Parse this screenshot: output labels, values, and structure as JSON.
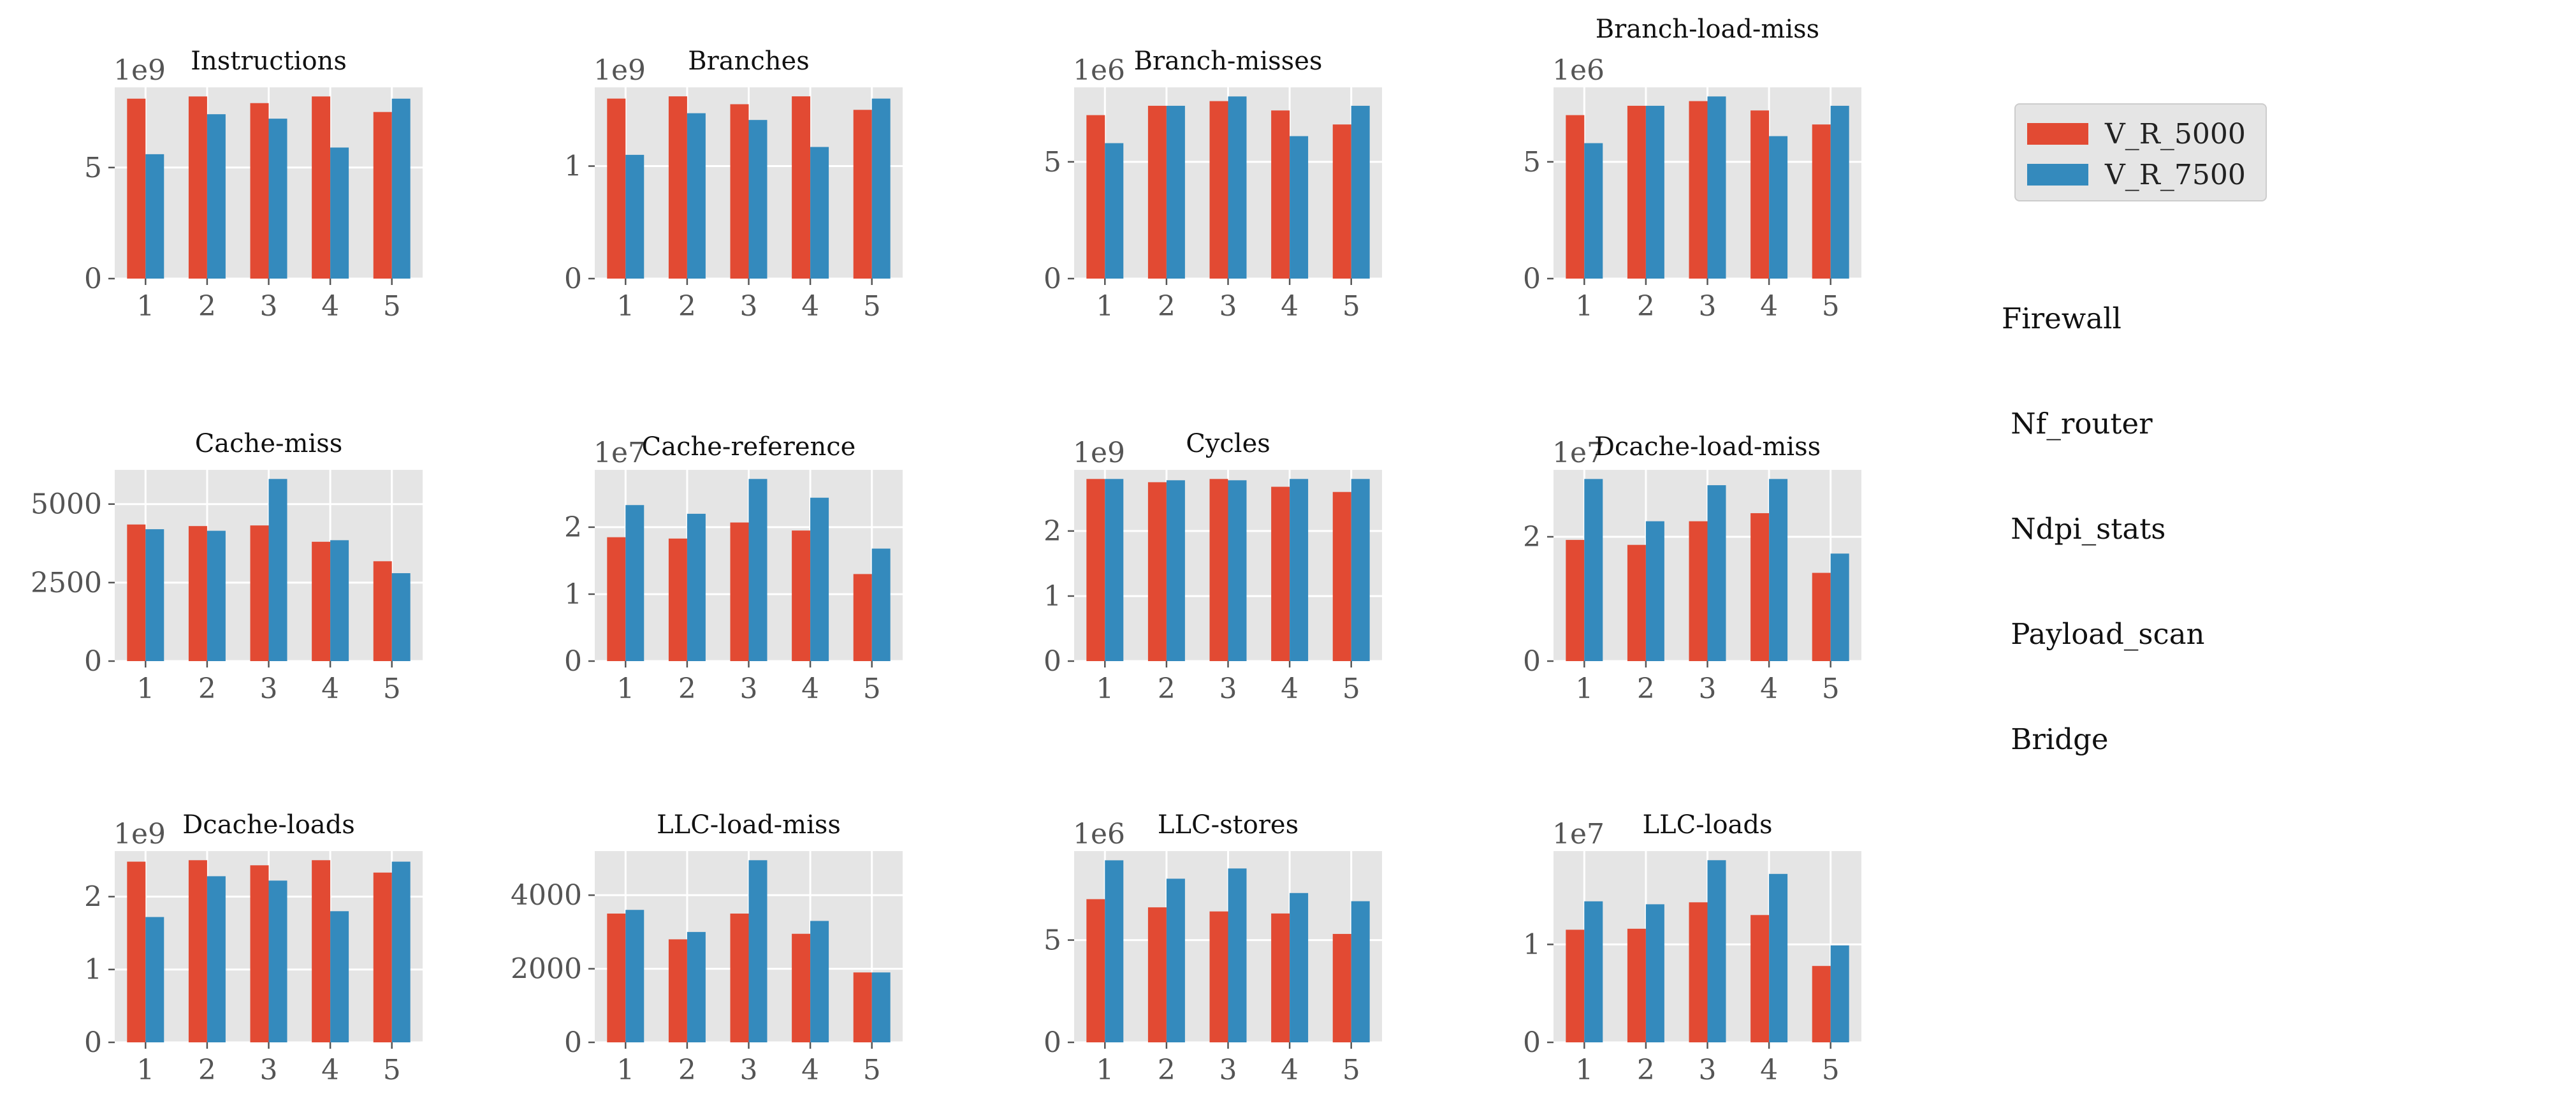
{
  "colors": {
    "V_R_5000": "#E24A33",
    "V_R_7500": "#348ABD",
    "panel_bg": "#E5E5E5",
    "grid": "#FFFFFF",
    "tick_text": "#555555"
  },
  "legend": {
    "entries": [
      "V_R_5000",
      "V_R_7500"
    ],
    "placement": "top-right"
  },
  "side_text": [
    "Firewall",
    " Nf_router",
    " Ndpi_stats",
    " Payload_scan",
    " Bridge"
  ],
  "chart_data": [
    {
      "type": "bar",
      "title": "Instructions",
      "offset_text": "1e9",
      "categories": [
        "1",
        "2",
        "3",
        "4",
        "5"
      ],
      "series": [
        {
          "name": "V_R_5000",
          "values": [
            8.1,
            8.2,
            7.9,
            8.2,
            7.5
          ]
        },
        {
          "name": "V_R_7500",
          "values": [
            5.6,
            7.4,
            7.2,
            5.9,
            8.1
          ]
        }
      ],
      "ylim": [
        0,
        8.61
      ],
      "yticks": [
        0,
        5
      ],
      "ytick_labels": [
        "0",
        "5"
      ]
    },
    {
      "type": "bar",
      "title": "Branches",
      "offset_text": "1e9",
      "categories": [
        "1",
        "2",
        "3",
        "4",
        "5"
      ],
      "series": [
        {
          "name": "V_R_5000",
          "values": [
            1.6,
            1.62,
            1.55,
            1.62,
            1.5
          ]
        },
        {
          "name": "V_R_7500",
          "values": [
            1.1,
            1.47,
            1.41,
            1.17,
            1.6
          ]
        }
      ],
      "ylim": [
        0,
        1.7
      ],
      "yticks": [
        0,
        1
      ],
      "ytick_labels": [
        "0",
        "1"
      ]
    },
    {
      "type": "bar",
      "title": "Branch-misses",
      "offset_text": "1e6",
      "categories": [
        "1",
        "2",
        "3",
        "4",
        "5"
      ],
      "series": [
        {
          "name": "V_R_5000",
          "values": [
            7.0,
            7.4,
            7.6,
            7.2,
            6.6
          ]
        },
        {
          "name": "V_R_7500",
          "values": [
            5.8,
            7.4,
            7.8,
            6.1,
            7.4
          ]
        }
      ],
      "ylim": [
        0,
        8.19
      ],
      "yticks": [
        0,
        5
      ],
      "ytick_labels": [
        "0",
        "5"
      ]
    },
    {
      "type": "bar",
      "title": "Branch-load-miss",
      "offset_text": "1e6",
      "categories": [
        "1",
        "2",
        "3",
        "4",
        "5"
      ],
      "series": [
        {
          "name": "V_R_5000",
          "values": [
            7.0,
            7.4,
            7.6,
            7.2,
            6.6
          ]
        },
        {
          "name": "V_R_7500",
          "values": [
            5.8,
            7.4,
            7.8,
            6.1,
            7.4
          ]
        }
      ],
      "ylim": [
        0,
        8.19
      ],
      "yticks": [
        0,
        5
      ],
      "ytick_labels": [
        "0",
        "5"
      ]
    },
    {
      "type": "bar",
      "title": "Cache-miss",
      "offset_text": "",
      "categories": [
        "1",
        "2",
        "3",
        "4",
        "5"
      ],
      "series": [
        {
          "name": "V_R_5000",
          "values": [
            4350,
            4300,
            4320,
            3800,
            3180
          ]
        },
        {
          "name": "V_R_7500",
          "values": [
            4200,
            4150,
            5800,
            3850,
            2800
          ]
        }
      ],
      "ylim": [
        0,
        6090
      ],
      "yticks": [
        0,
        2500,
        5000
      ],
      "ytick_labels": [
        "0",
        "2500",
        "5000"
      ]
    },
    {
      "type": "bar",
      "title": "Cache-reference",
      "offset_text": "1e7",
      "categories": [
        "1",
        "2",
        "3",
        "4",
        "5"
      ],
      "series": [
        {
          "name": "V_R_5000",
          "values": [
            1.85,
            1.83,
            2.07,
            1.95,
            1.3
          ]
        },
        {
          "name": "V_R_7500",
          "values": [
            2.33,
            2.2,
            2.72,
            2.44,
            1.68
          ]
        }
      ],
      "ylim": [
        0,
        2.856
      ],
      "yticks": [
        0,
        1,
        2
      ],
      "ytick_labels": [
        "0",
        "1",
        "2"
      ]
    },
    {
      "type": "bar",
      "title": "Cycles",
      "offset_text": "1e9",
      "categories": [
        "1",
        "2",
        "3",
        "4",
        "5"
      ],
      "series": [
        {
          "name": "V_R_5000",
          "values": [
            2.8,
            2.75,
            2.8,
            2.68,
            2.6
          ]
        },
        {
          "name": "V_R_7500",
          "values": [
            2.8,
            2.78,
            2.78,
            2.8,
            2.8
          ]
        }
      ],
      "ylim": [
        0,
        2.94
      ],
      "yticks": [
        0,
        1,
        2
      ],
      "ytick_labels": [
        "0",
        "1",
        "2"
      ]
    },
    {
      "type": "bar",
      "title": "Dcache-load-miss",
      "offset_text": "1e7",
      "categories": [
        "1",
        "2",
        "3",
        "4",
        "5"
      ],
      "series": [
        {
          "name": "V_R_5000",
          "values": [
            1.95,
            1.87,
            2.25,
            2.38,
            1.42
          ]
        },
        {
          "name": "V_R_7500",
          "values": [
            2.93,
            2.25,
            2.83,
            2.93,
            1.73
          ]
        }
      ],
      "ylim": [
        0,
        3.077
      ],
      "yticks": [
        0,
        2
      ],
      "ytick_labels": [
        "0",
        "2"
      ]
    },
    {
      "type": "bar",
      "title": "Dcache-loads",
      "offset_text": "1e9",
      "categories": [
        "1",
        "2",
        "3",
        "4",
        "5"
      ],
      "series": [
        {
          "name": "V_R_5000",
          "values": [
            2.48,
            2.5,
            2.43,
            2.5,
            2.33
          ]
        },
        {
          "name": "V_R_7500",
          "values": [
            1.72,
            2.28,
            2.22,
            1.8,
            2.48
          ]
        }
      ],
      "ylim": [
        0,
        2.625
      ],
      "yticks": [
        0,
        1,
        2
      ],
      "ytick_labels": [
        "0",
        "1",
        "2"
      ]
    },
    {
      "type": "bar",
      "title": "LLC-load-miss",
      "offset_text": "",
      "categories": [
        "1",
        "2",
        "3",
        "4",
        "5"
      ],
      "series": [
        {
          "name": "V_R_5000",
          "values": [
            3500,
            2800,
            3500,
            2950,
            1900
          ]
        },
        {
          "name": "V_R_7500",
          "values": [
            3600,
            3000,
            4950,
            3300,
            1900
          ]
        }
      ],
      "ylim": [
        0,
        5198
      ],
      "yticks": [
        0,
        2000,
        4000
      ],
      "ytick_labels": [
        "0",
        "2000",
        "4000"
      ]
    },
    {
      "type": "bar",
      "title": "LLC-stores",
      "offset_text": "1e6",
      "categories": [
        "1",
        "2",
        "3",
        "4",
        "5"
      ],
      "series": [
        {
          "name": "V_R_5000",
          "values": [
            7.0,
            6.6,
            6.4,
            6.3,
            5.3
          ]
        },
        {
          "name": "V_R_7500",
          "values": [
            8.9,
            8.0,
            8.5,
            7.3,
            6.9
          ]
        }
      ],
      "ylim": [
        0,
        9.35
      ],
      "yticks": [
        0,
        5
      ],
      "ytick_labels": [
        "0",
        "5"
      ]
    },
    {
      "type": "bar",
      "title": "LLC-loads",
      "offset_text": "1e7",
      "categories": [
        "1",
        "2",
        "3",
        "4",
        "5"
      ],
      "series": [
        {
          "name": "V_R_5000",
          "values": [
            1.15,
            1.16,
            1.43,
            1.3,
            0.78
          ]
        },
        {
          "name": "V_R_7500",
          "values": [
            1.44,
            1.41,
            1.86,
            1.72,
            0.99
          ]
        }
      ],
      "ylim": [
        0,
        1.953
      ],
      "yticks": [
        0,
        1
      ],
      "ytick_labels": [
        "0",
        "1"
      ]
    }
  ]
}
